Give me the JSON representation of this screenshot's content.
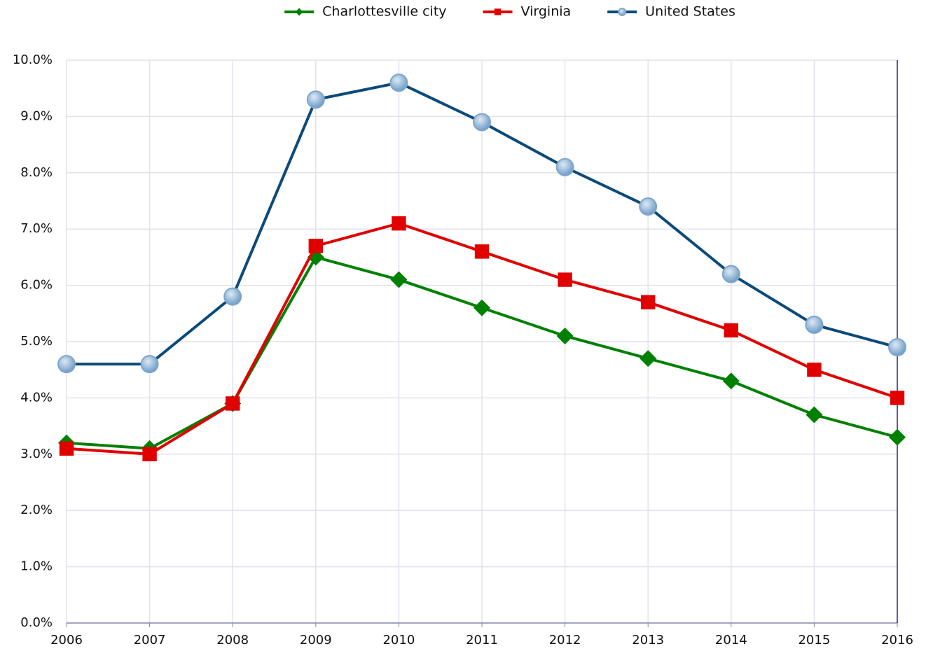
{
  "chart_data": {
    "type": "line",
    "categories": [
      "2006",
      "2007",
      "2008",
      "2009",
      "2010",
      "2011",
      "2012",
      "2013",
      "2014",
      "2015",
      "2016"
    ],
    "series": [
      {
        "name": "Charlottesville city",
        "color": "#008000",
        "marker": "diamond",
        "values": [
          3.2,
          3.1,
          3.9,
          6.5,
          6.1,
          5.6,
          5.1,
          4.7,
          4.3,
          3.7,
          3.3
        ]
      },
      {
        "name": "Virginia",
        "color": "#e00000",
        "marker": "square",
        "values": [
          3.1,
          3.0,
          3.9,
          6.7,
          7.1,
          6.6,
          6.1,
          5.7,
          5.2,
          4.5,
          4.0
        ]
      },
      {
        "name": "United States",
        "color": "#0b4a7a",
        "marker": "circle",
        "values": [
          4.6,
          4.6,
          5.8,
          9.3,
          9.6,
          8.9,
          8.1,
          7.4,
          6.2,
          5.3,
          4.9
        ]
      }
    ],
    "ylim": [
      0,
      10
    ],
    "yticks": [
      {
        "value": 0,
        "label": "0.0%"
      },
      {
        "value": 1,
        "label": "1.0%"
      },
      {
        "value": 2,
        "label": "2.0%"
      },
      {
        "value": 3,
        "label": "3.0%"
      },
      {
        "value": 4,
        "label": "4.0%"
      },
      {
        "value": 5,
        "label": "5.0%"
      },
      {
        "value": 6,
        "label": "6.0%"
      },
      {
        "value": 7,
        "label": "7.0%"
      },
      {
        "value": 8,
        "label": "8.0%"
      },
      {
        "value": 9,
        "label": "9.0%"
      },
      {
        "value": 10,
        "label": "10.0%"
      }
    ],
    "grid": true,
    "legend": "top"
  }
}
